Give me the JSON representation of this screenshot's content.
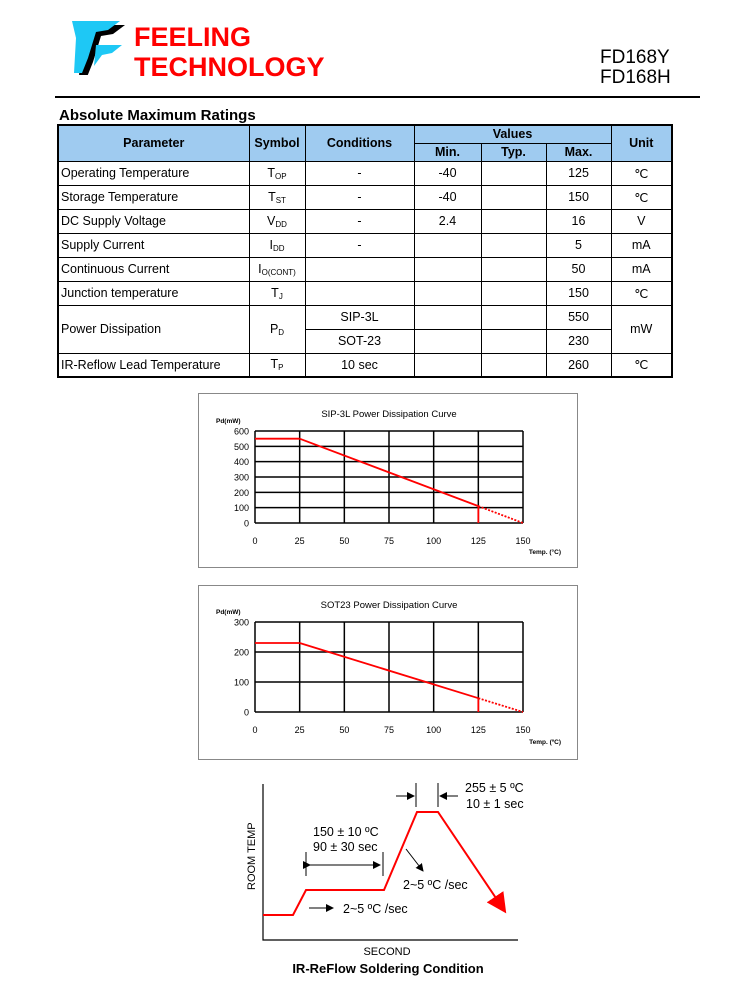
{
  "header": {
    "brand_line1": "FEELING",
    "brand_line2": "TECHNOLOGY",
    "model1": "FD168Y",
    "model2": "FD168H"
  },
  "section_title": "Absolute Maximum Ratings",
  "table": {
    "headers": {
      "parameter": "Parameter",
      "symbol": "Symbol",
      "conditions": "Conditions",
      "values": "Values",
      "min": "Min.",
      "typ": "Typ.",
      "max": "Max.",
      "unit": "Unit"
    },
    "rows": [
      {
        "parameter": "Operating Temperature",
        "symbol": "T",
        "symbol_sub": "OP",
        "conditions": "-",
        "min": "-40",
        "typ": "",
        "max": "125",
        "unit": "℃"
      },
      {
        "parameter": "Storage Temperature",
        "symbol": "T",
        "symbol_sub": "ST",
        "conditions": "-",
        "min": "-40",
        "typ": "",
        "max": "150",
        "unit": "℃"
      },
      {
        "parameter": "DC Supply Voltage",
        "symbol": "V",
        "symbol_sub": "DD",
        "conditions": "-",
        "min": "2.4",
        "typ": "",
        "max": "16",
        "unit": "V"
      },
      {
        "parameter": "Supply Current",
        "symbol": "I",
        "symbol_sub": "DD",
        "conditions": "-",
        "min": "",
        "typ": "",
        "max": "5",
        "unit": "mA"
      },
      {
        "parameter": "Continuous Current",
        "symbol": "I",
        "symbol_sub": "O(CONT)",
        "conditions": "",
        "min": "",
        "typ": "",
        "max": "50",
        "unit": "mA"
      },
      {
        "parameter": "Junction temperature",
        "symbol": "T",
        "symbol_sub": "J",
        "conditions": "",
        "min": "",
        "typ": "",
        "max": "150",
        "unit": "℃"
      },
      {
        "parameter": "Power Dissipation",
        "symbol": "P",
        "symbol_sub": "D",
        "conditions": "SIP-3L",
        "conditions2": "SOT-23",
        "min": "",
        "typ": "",
        "max": "550",
        "max2": "230",
        "unit": "mW"
      },
      {
        "parameter": "IR-Reflow Lead Temperature",
        "symbol": "T",
        "symbol_sub": "P",
        "conditions": "10 sec",
        "min": "",
        "typ": "",
        "max": "260",
        "unit": "℃"
      }
    ]
  },
  "chart_data": [
    {
      "type": "line",
      "title": "SIP-3L Power Dissipation Curve",
      "ylabel": "Pd(mW)",
      "xlabel": "Temp. (°C)",
      "xlim": [
        0,
        150
      ],
      "ylim": [
        0,
        600
      ],
      "xticks": [
        0,
        25,
        50,
        75,
        100,
        125,
        150
      ],
      "yticks": [
        0,
        100,
        200,
        300,
        400,
        500,
        600
      ],
      "grid": true,
      "color": "#ff0000",
      "series": [
        {
          "x": [
            0,
            25,
            125,
            150
          ],
          "y": [
            550,
            550,
            110,
            0
          ]
        }
      ],
      "solid_until_x": 125
    },
    {
      "type": "line",
      "title": "SOT23 Power Dissipation Curve",
      "ylabel": "Pd(mW)",
      "xlabel": "Temp. (ºC)",
      "xlim": [
        0,
        150
      ],
      "ylim": [
        0,
        300
      ],
      "xticks": [
        0,
        25,
        50,
        75,
        100,
        125,
        150
      ],
      "yticks": [
        0,
        100,
        200,
        300
      ],
      "grid": true,
      "color": "#ff0000",
      "series": [
        {
          "x": [
            0,
            25,
            125,
            150
          ],
          "y": [
            230,
            230,
            46,
            0
          ]
        }
      ],
      "solid_until_x": 125
    }
  ],
  "reflow": {
    "title": "IR-ReFlow Soldering Condition",
    "xlabel": "SECOND",
    "ylabel": "ROOM TEMP",
    "peak_temp": "255 ± 5 ºC",
    "peak_time": "10 ± 1 sec",
    "soak_temp": "150 ± 10 ºC",
    "soak_time": "90 ± 30 sec",
    "ramp2": "2~5 ºC /sec",
    "ramp1": "2~5 ºC /sec"
  }
}
